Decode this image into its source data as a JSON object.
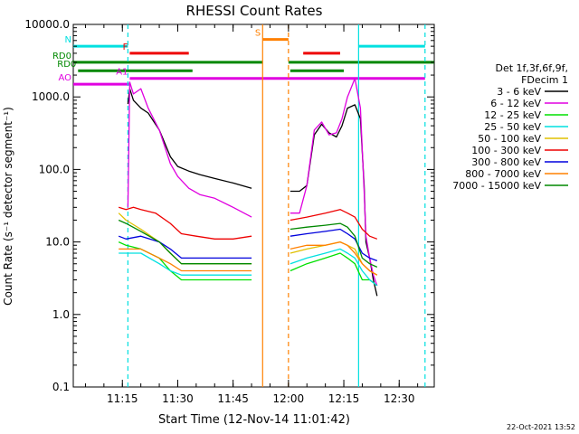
{
  "chart_data": {
    "type": "line",
    "title": "RHESSI Count Rates",
    "xlabel": "Start Time (12-Nov-14 11:01:42)",
    "ylabel": "Count Rate (s⁻¹ detector segment⁻¹)",
    "yscale": "log",
    "ylim": [
      0.1,
      10000
    ],
    "xlim": [
      "11:01:42",
      "12:39:30"
    ],
    "x_ticks": [
      "11:15",
      "11:30",
      "11:45",
      "12:00",
      "12:15",
      "12:30"
    ],
    "y_ticks": [
      "0.1",
      "1.0",
      "10.0",
      "100.0",
      "1000.0",
      "10000.0"
    ],
    "timestamp": "22-Oct-2021 13:52",
    "legend": {
      "placement": "right",
      "header": [
        "Det 1f,3f,6f,9f,",
        "FDecim 1"
      ],
      "entries": [
        {
          "label": "3 - 6 keV",
          "color": "#000000"
        },
        {
          "label": "6 - 12 keV",
          "color": "#e000e0"
        },
        {
          "label": "12 - 25 keV",
          "color": "#00e000"
        },
        {
          "label": "25 - 50 keV",
          "color": "#00e0e0"
        },
        {
          "label": "50 - 100 keV",
          "color": "#e0c000"
        },
        {
          "label": "100 - 300 keV",
          "color": "#ee0000"
        },
        {
          "label": "300 - 800 keV",
          "color": "#0000dd"
        },
        {
          "label": "800 - 7000 keV",
          "color": "#ff8000"
        },
        {
          "label": "7000 - 15000 keV",
          "color": "#008800"
        }
      ]
    },
    "flag_bars": [
      {
        "label": "N",
        "color": "#00e0e0",
        "y": 5000,
        "segments": [
          [
            "11:01:42",
            "11:16:30"
          ],
          [
            "12:19:00",
            "12:37:00"
          ]
        ]
      },
      {
        "label": "S",
        "color": "#ff8000",
        "y": 6200,
        "segments": [
          [
            "11:53:00",
            "12:00:00"
          ]
        ]
      },
      {
        "label": "F",
        "color": "#ee0000",
        "y": 4000,
        "segments": [
          [
            "11:17:00",
            "11:33:00"
          ],
          [
            "12:04:00",
            "12:14:00"
          ]
        ]
      },
      {
        "label": "RD0",
        "color": "#008800",
        "y": 3000,
        "segments": [
          [
            "11:01:42",
            "11:53:00"
          ],
          [
            "12:00:00",
            "12:39:30"
          ]
        ]
      },
      {
        "label": "RD0",
        "color": "#008800",
        "y": 2300,
        "segments": [
          [
            "11:03:00",
            "11:34:00"
          ],
          [
            "12:00:30",
            "12:15:00"
          ]
        ]
      },
      {
        "label": "AO",
        "color": "#e000e0",
        "y": 1500,
        "segments": [
          [
            "11:01:42",
            "11:17:00"
          ]
        ]
      },
      {
        "label": "A1",
        "color": "#e000e0",
        "y": 1800,
        "segments": [
          [
            "11:17:00",
            "12:37:00"
          ]
        ]
      }
    ],
    "vertical_markers": [
      {
        "time": "11:16:30",
        "color": "#00e0e0",
        "style": "dashed"
      },
      {
        "time": "11:53:00",
        "color": "#ff8000",
        "style": "solid"
      },
      {
        "time": "12:00:00",
        "color": "#ff8000",
        "style": "dashed"
      },
      {
        "time": "12:19:00",
        "color": "#00e0e0",
        "style": "solid"
      },
      {
        "time": "12:37:00",
        "color": "#00e0e0",
        "style": "dashed"
      }
    ],
    "series": [
      {
        "name": "3 - 6 keV",
        "color": "#000000",
        "segments": [
          {
            "t": [
              "11:16:30",
              "11:17:00",
              "11:18:00",
              "11:20:00",
              "11:22:00",
              "11:25:00",
              "11:28:00",
              "11:30:00",
              "11:33:00",
              "11:36:00",
              "11:40:00",
              "11:45:00",
              "11:50:00"
            ],
            "y": [
              800,
              1300,
              900,
              700,
              600,
              350,
              150,
              110,
              95,
              85,
              75,
              65,
              55
            ]
          },
          {
            "t": [
              "12:00:30",
              "12:03:00",
              "12:05:00",
              "12:07:00",
              "12:09:00",
              "12:11:00",
              "12:13:00",
              "12:14:30",
              "12:16:00",
              "12:18:00",
              "12:19:30",
              "12:20:30",
              "12:21:00",
              "12:22:00",
              "12:23:00",
              "12:24:00"
            ],
            "y": [
              50,
              50,
              60,
              300,
              420,
              320,
              280,
              400,
              700,
              780,
              500,
              60,
              10,
              6,
              3,
              1.8
            ]
          }
        ]
      },
      {
        "name": "6 - 12 keV",
        "color": "#e000e0",
        "segments": [
          {
            "t": [
              "11:16:30",
              "11:17:00",
              "11:18:00",
              "11:20:00",
              "11:22:00",
              "11:25:00",
              "11:28:00",
              "11:30:00",
              "11:33:00",
              "11:36:00",
              "11:40:00",
              "11:45:00",
              "11:50:00"
            ],
            "y": [
              30,
              1600,
              1100,
              1300,
              700,
              350,
              120,
              80,
              55,
              45,
              40,
              30,
              22
            ]
          },
          {
            "t": [
              "12:00:30",
              "12:03:00",
              "12:05:00",
              "12:07:00",
              "12:09:00",
              "12:11:00",
              "12:13:00",
              "12:14:30",
              "12:16:00",
              "12:18:00",
              "12:19:30",
              "12:20:30",
              "12:21:00",
              "12:22:00",
              "12:23:00",
              "12:24:00"
            ],
            "y": [
              25,
              25,
              60,
              350,
              450,
              300,
              320,
              500,
              1000,
              1800,
              700,
              50,
              12,
              6,
              3.5,
              2.5
            ]
          }
        ]
      },
      {
        "name": "12 - 25 keV",
        "color": "#00e000",
        "segments": [
          {
            "t": [
              "11:14:00",
              "11:16:00",
              "11:20:00",
              "11:25:00",
              "11:28:00",
              "11:31:00",
              "11:35:00",
              "11:40:00",
              "11:45:00",
              "11:50:00"
            ],
            "y": [
              10,
              9,
              8,
              6,
              4,
              3,
              3,
              3,
              3,
              3
            ]
          },
          {
            "t": [
              "12:00:30",
              "12:05:00",
              "12:10:00",
              "12:14:00",
              "12:16:00",
              "12:18:00",
              "12:20:00",
              "12:22:00",
              "12:24:00"
            ],
            "y": [
              4,
              5,
              6,
              7,
              6,
              5,
              3,
              3,
              2.5
            ]
          }
        ]
      },
      {
        "name": "25 - 50 keV",
        "color": "#00e0e0",
        "segments": [
          {
            "t": [
              "11:14:00",
              "11:16:00",
              "11:20:00",
              "11:25:00",
              "11:28:00",
              "11:31:00",
              "11:35:00",
              "11:40:00",
              "11:45:00",
              "11:50:00"
            ],
            "y": [
              7,
              7,
              7,
              5,
              4,
              3.5,
              3.5,
              3.5,
              3.5,
              3.5
            ]
          },
          {
            "t": [
              "12:00:30",
              "12:05:00",
              "12:10:00",
              "12:14:00",
              "12:16:00",
              "12:18:00",
              "12:20:00",
              "12:22:00",
              "12:24:00"
            ],
            "y": [
              5,
              6,
              7,
              8,
              7,
              6,
              4,
              3,
              2.5
            ]
          }
        ]
      },
      {
        "name": "50 - 100 keV",
        "color": "#e0c000",
        "segments": [
          {
            "t": [
              "11:14:00",
              "11:16:00",
              "11:20:00",
              "11:25:00",
              "11:28:00",
              "11:31:00",
              "11:35:00",
              "11:40:00",
              "11:45:00",
              "11:50:00"
            ],
            "y": [
              25,
              20,
              15,
              10,
              7,
              5,
              5,
              5,
              5,
              5
            ]
          },
          {
            "t": [
              "12:00:30",
              "12:05:00",
              "12:10:00",
              "12:14:00",
              "12:16:00",
              "12:18:00",
              "12:20:00",
              "12:22:00",
              "12:24:00"
            ],
            "y": [
              7,
              8,
              9,
              10,
              9,
              8,
              5,
              4,
              3.5
            ]
          }
        ]
      },
      {
        "name": "100 - 300 keV",
        "color": "#ee0000",
        "segments": [
          {
            "t": [
              "11:14:00",
              "11:16:00",
              "11:18:00",
              "11:20:00",
              "11:24:00",
              "11:28:00",
              "11:31:00",
              "11:35:00",
              "11:40:00",
              "11:45:00",
              "11:50:00"
            ],
            "y": [
              30,
              28,
              30,
              28,
              25,
              18,
              13,
              12,
              11,
              11,
              12
            ]
          },
          {
            "t": [
              "12:00:30",
              "12:05:00",
              "12:10:00",
              "12:14:00",
              "12:16:00",
              "12:18:00",
              "12:20:00",
              "12:22:00",
              "12:24:00"
            ],
            "y": [
              20,
              22,
              25,
              28,
              25,
              22,
              15,
              12,
              11
            ]
          }
        ]
      },
      {
        "name": "300 - 800 keV",
        "color": "#0000dd",
        "segments": [
          {
            "t": [
              "11:14:00",
              "11:16:00",
              "11:20:00",
              "11:25:00",
              "11:28:00",
              "11:31:00",
              "11:35:00",
              "11:40:00",
              "11:45:00",
              "11:50:00"
            ],
            "y": [
              12,
              11,
              12,
              10,
              8,
              6,
              6,
              6,
              6,
              6
            ]
          },
          {
            "t": [
              "12:00:30",
              "12:05:00",
              "12:10:00",
              "12:14:00",
              "12:16:00",
              "12:18:00",
              "12:20:00",
              "12:22:00",
              "12:24:00"
            ],
            "y": [
              12,
              13,
              14,
              15,
              13,
              11,
              7,
              6,
              5.5
            ]
          }
        ]
      },
      {
        "name": "800 - 7000 keV",
        "color": "#ff8000",
        "segments": [
          {
            "t": [
              "11:14:00",
              "11:16:00",
              "11:20:00",
              "11:25:00",
              "11:28:00",
              "11:31:00",
              "11:35:00",
              "11:40:00",
              "11:45:00",
              "11:50:00"
            ],
            "y": [
              8,
              8,
              8,
              6,
              5,
              4,
              4,
              4,
              4,
              4
            ]
          },
          {
            "t": [
              "12:00:30",
              "12:05:00",
              "12:10:00",
              "12:14:00",
              "12:16:00",
              "12:18:00",
              "12:20:00",
              "12:22:00",
              "12:24:00"
            ],
            "y": [
              8,
              9,
              9,
              10,
              9,
              7,
              5,
              4,
              3.5
            ]
          }
        ]
      },
      {
        "name": "7000 - 15000 keV",
        "color": "#008800",
        "segments": [
          {
            "t": [
              "11:14:00",
              "11:16:00",
              "11:20:00",
              "11:25:00",
              "11:28:00",
              "11:31:00",
              "11:35:00",
              "11:40:00",
              "11:45:00",
              "11:50:00"
            ],
            "y": [
              20,
              18,
              14,
              10,
              7,
              5,
              5,
              5,
              5,
              5
            ]
          },
          {
            "t": [
              "12:00:30",
              "12:05:00",
              "12:10:00",
              "12:14:00",
              "12:16:00",
              "12:18:00",
              "12:20:00",
              "12:22:00",
              "12:24:00"
            ],
            "y": [
              15,
              16,
              17,
              18,
              16,
              12,
              6,
              5,
              4.5
            ]
          }
        ]
      }
    ]
  }
}
